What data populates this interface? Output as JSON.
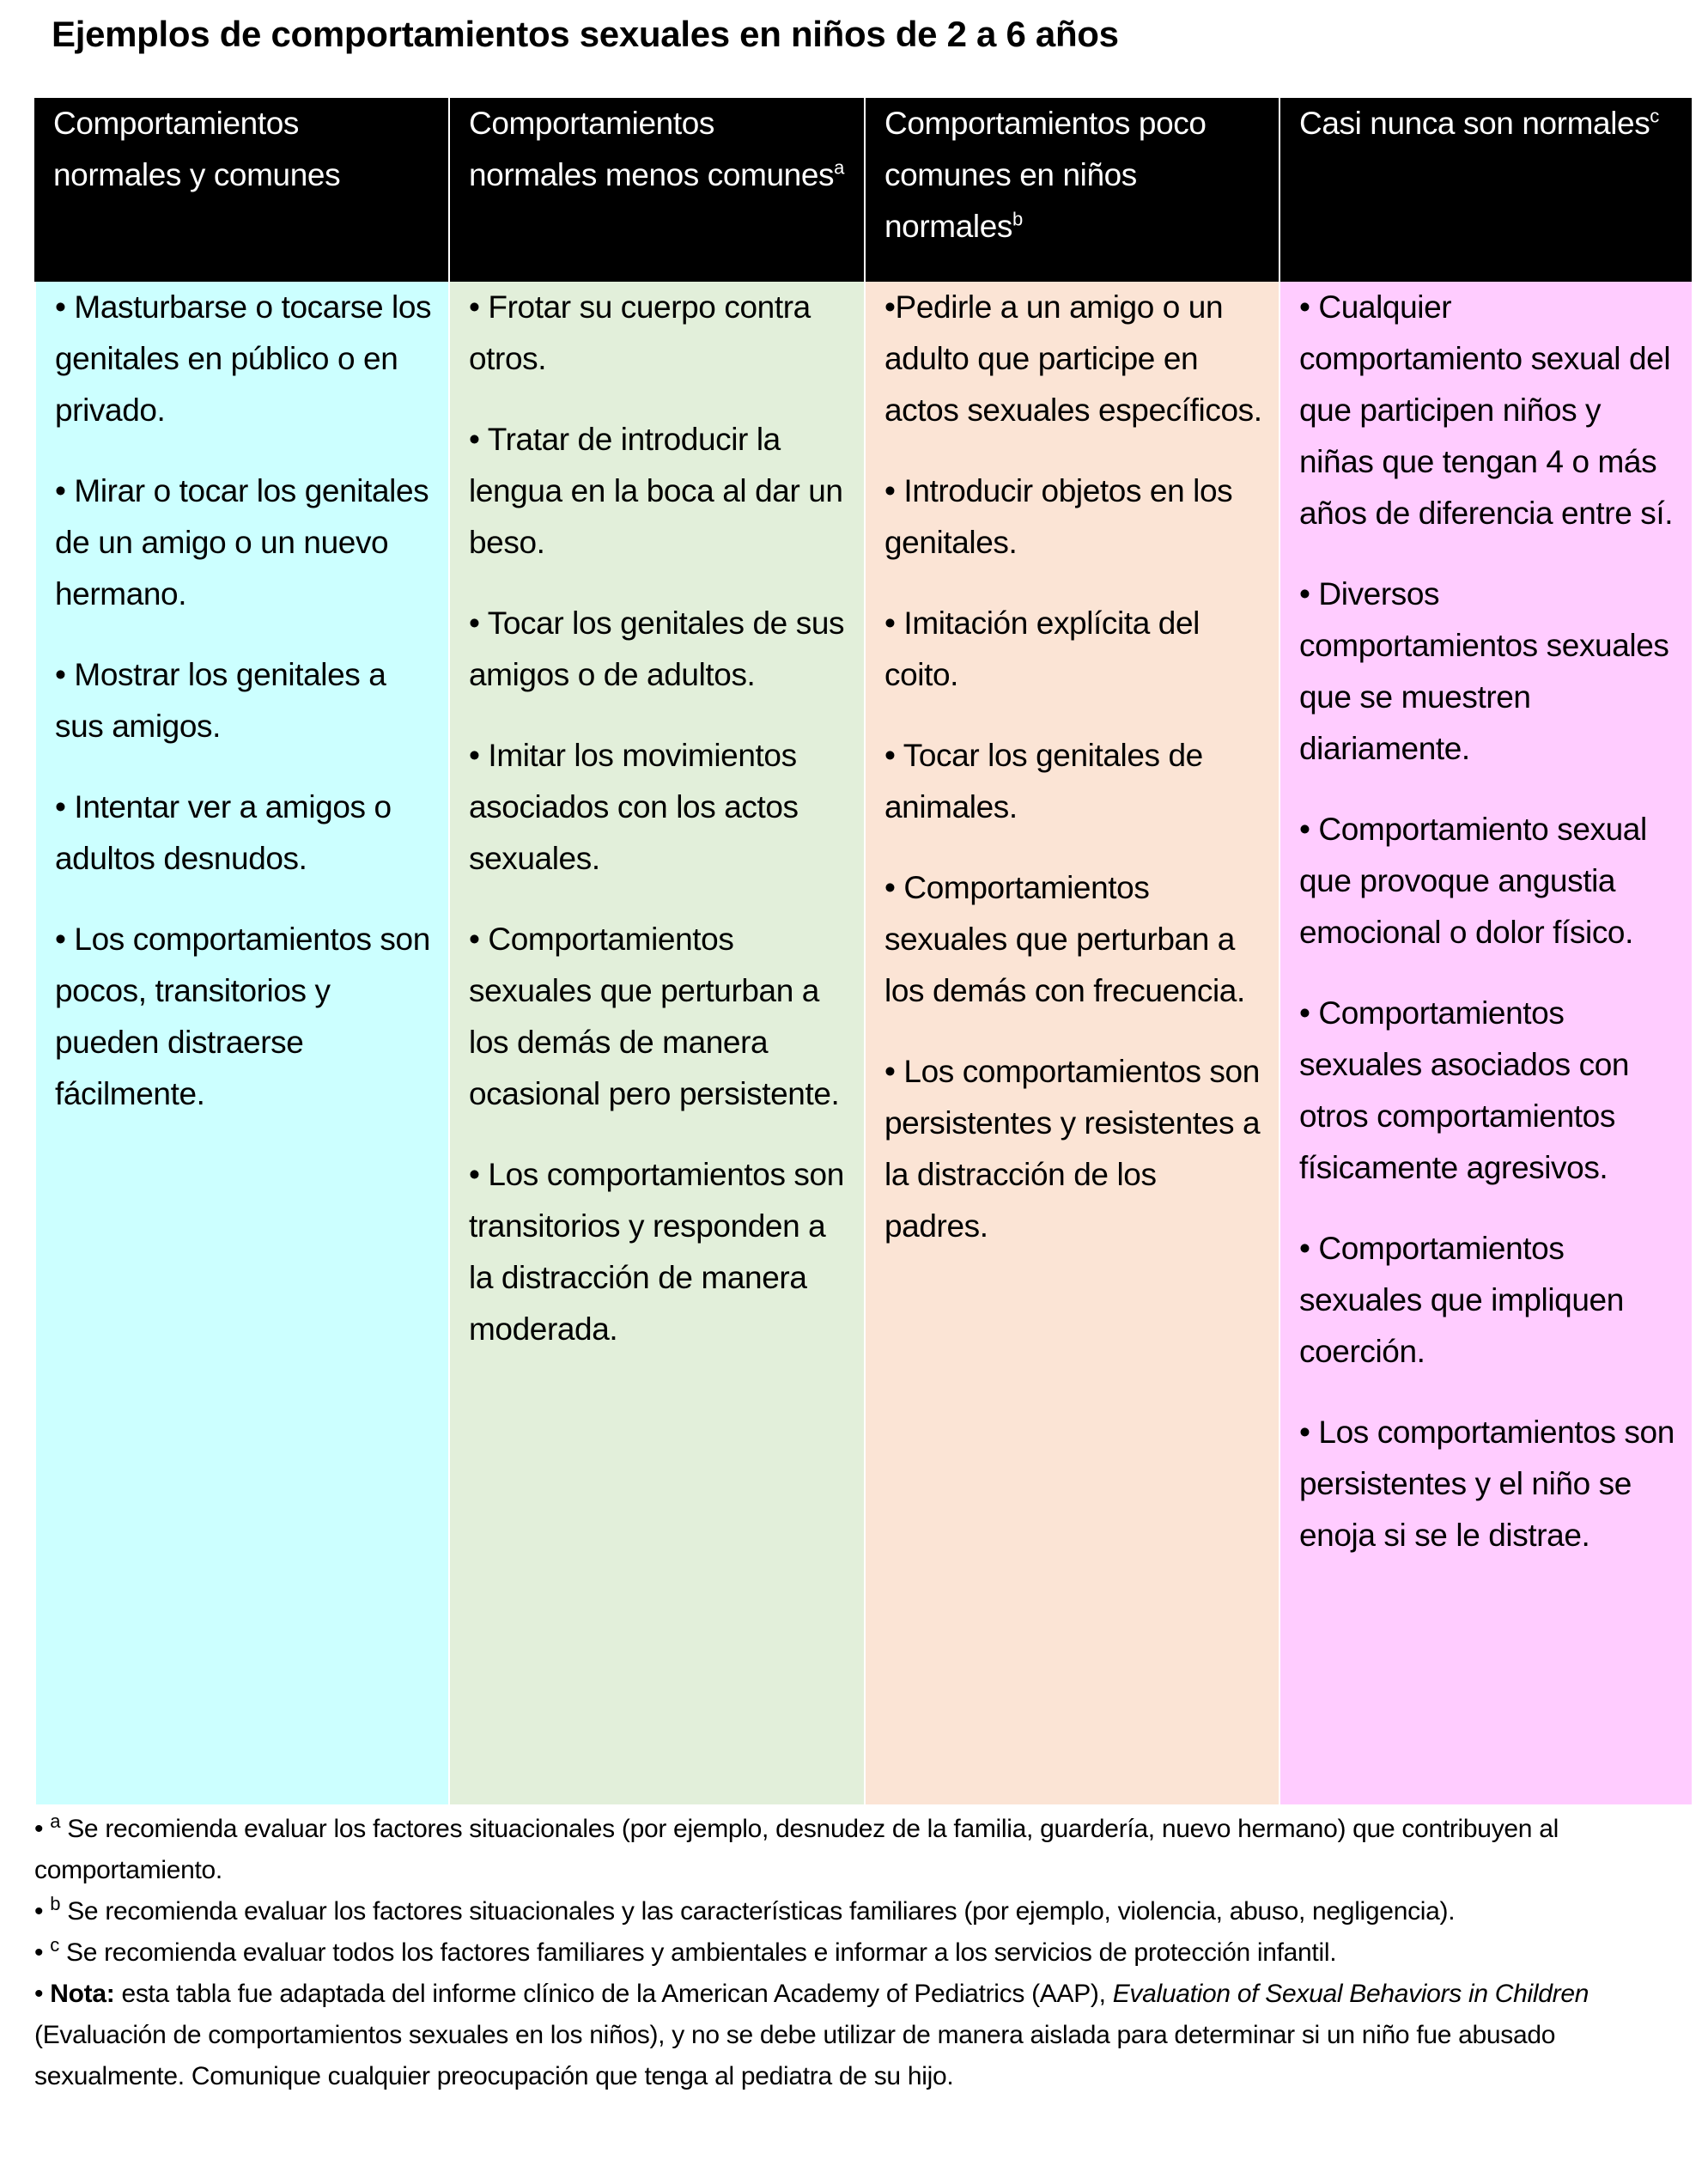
{
  "title": "Ejemplos de comportamientos sexuales en niños de 2 a 6 años",
  "colors": {
    "header_bg": "#000000",
    "col1": "#CCFFFF",
    "col2": "#E2EFDA",
    "col3": "#FBE4D5",
    "col4": "#FFCCFF"
  },
  "columns": [
    {
      "header": "Comportamientos normales y comunes",
      "sup": "",
      "items": [
        "• Masturbarse o tocarse los genitales en público o en privado.",
        "• Mirar o tocar los genitales de un amigo o un nuevo hermano.",
        "• Mostrar los genitales a sus amigos.",
        "• Intentar ver a amigos o adultos desnudos.",
        "• Los comportamientos son pocos, transitorios y pueden distraerse fácilmente."
      ]
    },
    {
      "header": "Comportamientos normales menos comunes",
      "sup": "a",
      "items": [
        "• Frotar su cuerpo contra otros.",
        "• Tratar de introducir la lengua en la boca al dar un beso.",
        "• Tocar los genitales de sus amigos o de adultos.",
        "• Imitar los movimientos asociados con los actos sexuales.",
        "• Comportamientos sexuales que perturban a los demás de manera ocasional pero persistente.",
        "• Los comportamientos son transitorios y responden a la distracción de manera moderada."
      ]
    },
    {
      "header": "Comportamientos poco comunes en niños normales",
      "sup": "b",
      "items": [
        "•Pedirle a un amigo o un adulto que participe en actos sexuales específicos.",
        "• Introducir objetos en los genitales.",
        "• Imitación explícita del coito.",
        "• Tocar los genitales de animales.",
        "• Comportamientos sexuales que perturban a los demás con frecuencia.",
        "• Los comportamientos son persistentes y resistentes a la distracción de los padres."
      ]
    },
    {
      "header": "Casi nunca son normales",
      "sup": "c",
      "items": [
        "• Cualquier comportamiento sexual del que participen niños y niñas que tengan 4 o más años de diferencia entre sí.",
        "• Diversos comportamientos sexuales que se muestren diariamente.",
        "• Comportamiento sexual que provoque angustia emocional o dolor físico.",
        "• Comportamientos sexuales asociados con otros comportamientos físicamente agresivos.",
        "• Comportamientos sexuales que impliquen coerción.",
        "• Los comportamientos son persistentes y el niño se enoja si se le distrae."
      ]
    }
  ],
  "notes": [
    {
      "bullet": "• ",
      "sup": "a",
      "text": " Se recomienda evaluar los factores situacionales (por ejemplo, desnudez de la familia, guardería, nuevo hermano) que contribuyen al comportamiento."
    },
    {
      "bullet": "• ",
      "sup": "b",
      "text": " Se recomienda evaluar los factores situacionales y las características familiares (por ejemplo, violencia, abuso, negligencia)."
    },
    {
      "bullet": "• ",
      "sup": "c",
      "text": " Se recomienda evaluar todos los factores familiares y ambientales e informar a los servicios de protección infantil."
    }
  ],
  "nota": {
    "bullet": "• ",
    "label": "Nota:",
    "text1": " esta tabla fue adaptada del informe clínico de la American Academy of Pediatrics (AAP), ",
    "italic": "Evaluation of Sexual Behaviors in Children",
    "text2": " (Evaluación de comportamientos sexuales en los niños), y no se debe utilizar de manera aislada para determinar si un niño fue abusado sexualmente. Comunique cualquier preocupación que tenga al pediatra de su hijo."
  }
}
